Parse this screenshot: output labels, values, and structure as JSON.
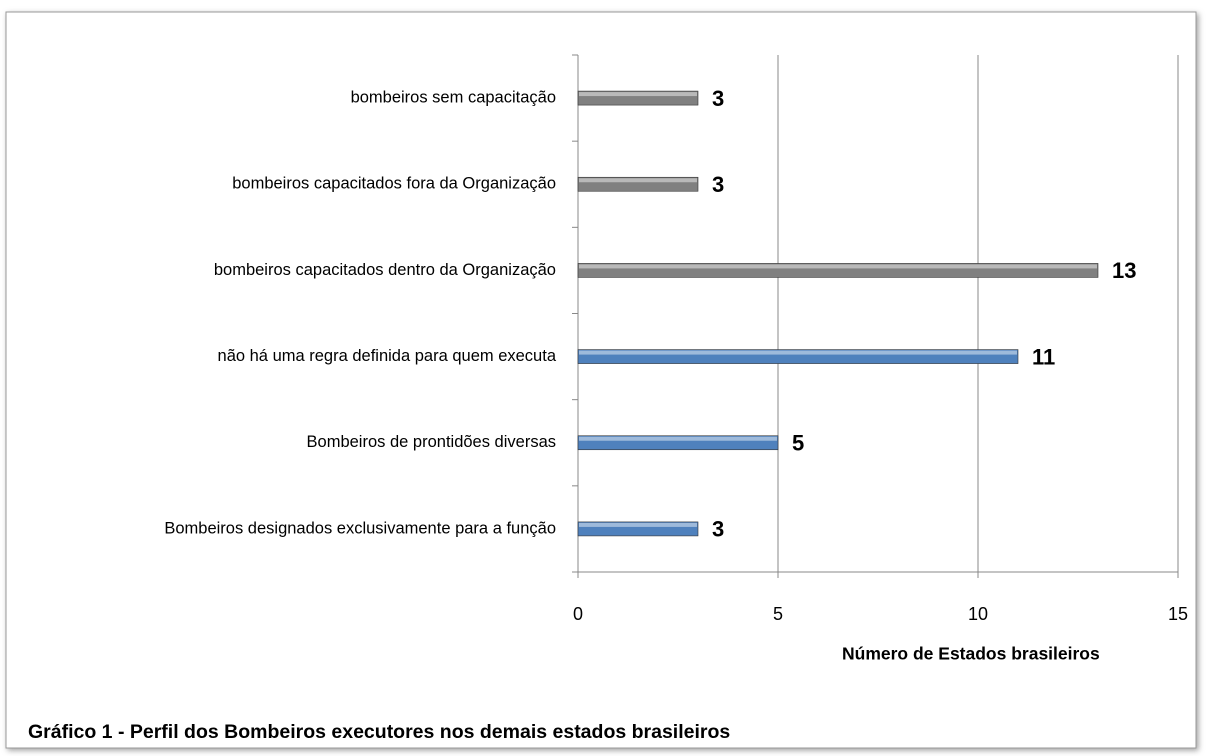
{
  "chart_data": {
    "type": "bar",
    "orientation": "horizontal",
    "categories": [
      "Bombeiros designados exclusivamente para a função",
      "Bombeiros de prontidões diversas",
      "não há uma regra definida para quem executa",
      "bombeiros capacitados dentro da Organização",
      "bombeiros capacitados fora da Organização",
      "bombeiros sem capacitação"
    ],
    "values": [
      3,
      5,
      11,
      13,
      3,
      3
    ],
    "colors": [
      "#4f81bd",
      "#4f81bd",
      "#4f81bd",
      "#808080",
      "#808080",
      "#808080"
    ],
    "label_colors": [
      "#e31b1b",
      "#000000",
      "#000000",
      "#000000",
      "#000000",
      "#000000"
    ],
    "xlim": [
      0,
      15
    ],
    "xticks": [
      0,
      5,
      10,
      15
    ],
    "grid": true,
    "x_axis_label": "Número de Estados brasileiros",
    "caption": "Gráfico 1 - Perfil dos Bombeiros executores nos demais estados brasileiros"
  }
}
